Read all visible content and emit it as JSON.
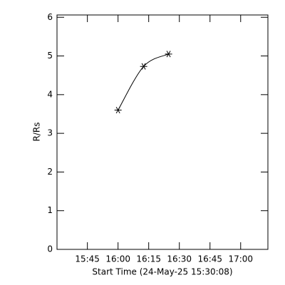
{
  "chart_data": {
    "type": "line",
    "x_label": "Start Time (24-May-25 15:30:08)",
    "y_label": "R/Rs",
    "x": [
      29.87,
      42.4,
      54.6
    ],
    "series": [
      {
        "values": [
          3.6,
          4.73,
          5.05
        ],
        "color": "#000000"
      }
    ],
    "xlim": [
      0,
      103.2
    ],
    "xticks": [
      {
        "value": 14.87,
        "label": "15:45"
      },
      {
        "value": 29.87,
        "label": "16:00"
      },
      {
        "value": 44.87,
        "label": "16:15"
      },
      {
        "value": 59.87,
        "label": "16:30"
      },
      {
        "value": 74.87,
        "label": "16:45"
      },
      {
        "value": 89.87,
        "label": "17:00"
      }
    ],
    "ylim": [
      0,
      6.06
    ],
    "yticks": [
      0,
      1,
      2,
      3,
      4,
      5,
      6
    ],
    "marker": "asterisk"
  }
}
